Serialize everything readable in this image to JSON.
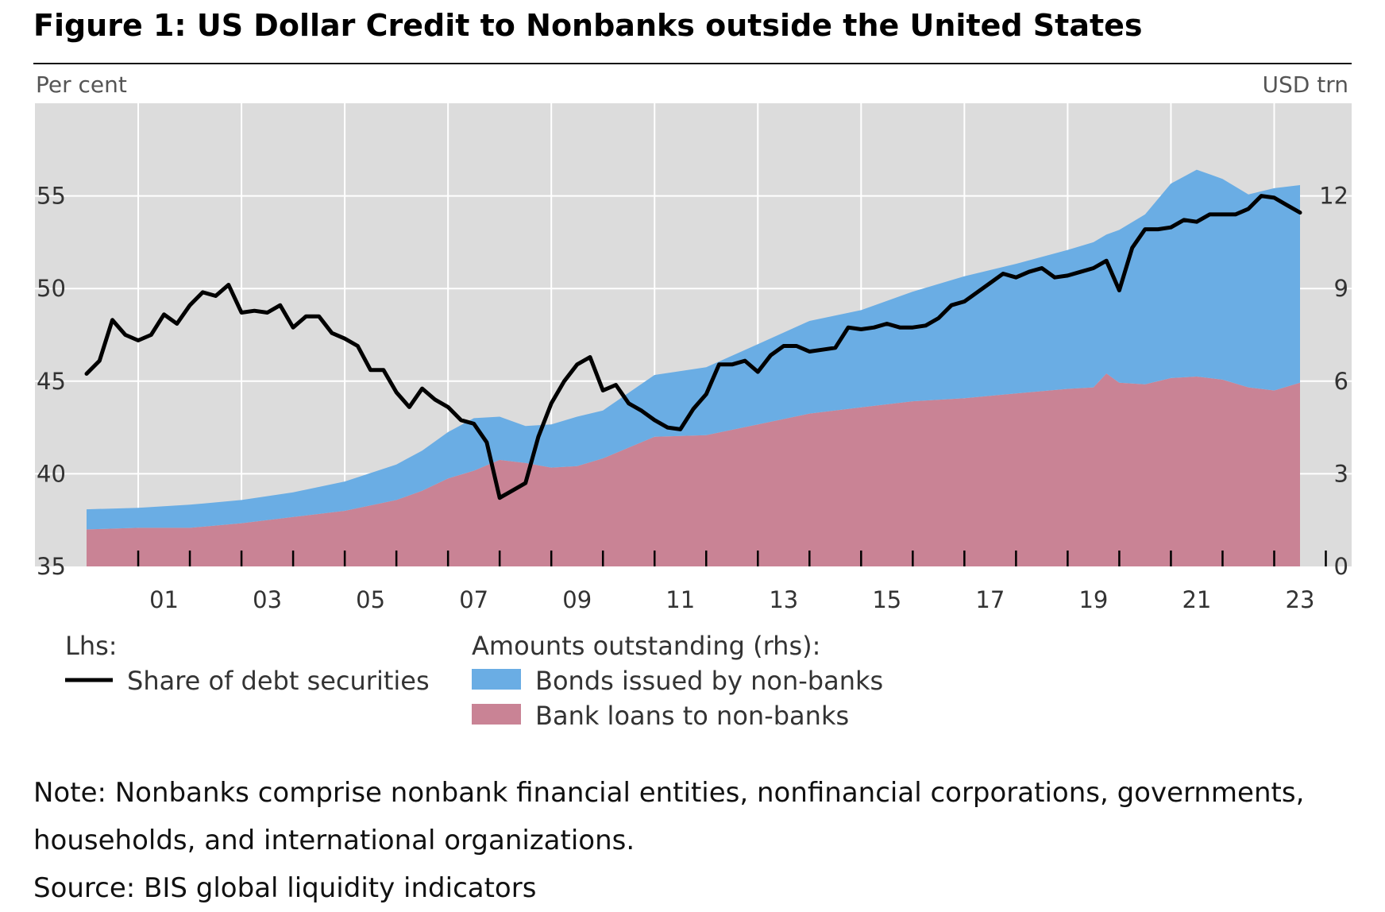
{
  "title": "Figure 1: US Dollar Credit to Nonbanks outside the United States",
  "note_lines": [
    "Note: Nonbanks comprise nonbank financial entities, nonfinancial corporations, governments,",
    "households, and international organizations."
  ],
  "source": "Source: BIS global liquidity indicators",
  "colors": {
    "plot_bg": "#dcdcdc",
    "grid": "#ffffff",
    "bonds": "#6aade4",
    "loans": "#c98395",
    "line": "#000000"
  },
  "chart_data": {
    "type": "area",
    "y_left_unit": "Per cent",
    "y_right_unit": "USD trn",
    "x_ticks": [
      "01",
      "03",
      "05",
      "07",
      "09",
      "11",
      "13",
      "15",
      "17",
      "19",
      "21",
      "23"
    ],
    "x_tick_values": [
      2001,
      2003,
      2005,
      2007,
      2009,
      2011,
      2013,
      2015,
      2017,
      2019,
      2021,
      2023
    ],
    "xlim": [
      1999.0,
      2024.5
    ],
    "y_left_ticks": [
      35,
      40,
      45,
      50,
      55
    ],
    "ylim_left": [
      35,
      60
    ],
    "y_right_ticks": [
      0,
      3,
      6,
      9,
      12
    ],
    "ylim_right": [
      0,
      15
    ],
    "grid": true,
    "legend": {
      "lhs_header": "Lhs:",
      "rhs_header": "Amounts outstanding (rhs):"
    },
    "series": [
      {
        "name": "Share of debt securities",
        "axis": "left",
        "kind": "line",
        "x": [
          2000.0,
          2000.25,
          2000.5,
          2000.75,
          2001.0,
          2001.25,
          2001.5,
          2001.75,
          2002.0,
          2002.25,
          2002.5,
          2002.75,
          2003.0,
          2003.25,
          2003.5,
          2003.75,
          2004.0,
          2004.25,
          2004.5,
          2004.75,
          2005.0,
          2005.25,
          2005.5,
          2005.75,
          2006.0,
          2006.25,
          2006.5,
          2006.75,
          2007.0,
          2007.25,
          2007.5,
          2007.75,
          2008.0,
          2008.25,
          2008.5,
          2008.75,
          2009.0,
          2009.25,
          2009.5,
          2009.75,
          2010.0,
          2010.25,
          2010.5,
          2010.75,
          2011.0,
          2011.25,
          2011.5,
          2011.75,
          2012.0,
          2012.25,
          2012.5,
          2012.75,
          2013.0,
          2013.25,
          2013.5,
          2013.75,
          2014.0,
          2014.25,
          2014.5,
          2014.75,
          2015.0,
          2015.25,
          2015.5,
          2015.75,
          2016.0,
          2016.25,
          2016.5,
          2016.75,
          2017.0,
          2017.25,
          2017.5,
          2017.75,
          2018.0,
          2018.25,
          2018.5,
          2018.75,
          2019.0,
          2019.25,
          2019.5,
          2019.75,
          2020.0,
          2020.25,
          2020.5,
          2020.75,
          2021.0,
          2021.25,
          2021.5,
          2021.75,
          2022.0,
          2022.25,
          2022.5,
          2022.75,
          2023.0,
          2023.25,
          2023.5
        ],
        "values": [
          45.4,
          46.1,
          48.3,
          47.5,
          47.2,
          47.5,
          48.6,
          48.1,
          49.1,
          49.8,
          49.6,
          50.2,
          48.7,
          48.8,
          48.7,
          49.1,
          47.9,
          48.5,
          48.5,
          47.6,
          47.3,
          46.9,
          45.6,
          45.6,
          44.4,
          43.6,
          44.6,
          44.0,
          43.6,
          42.9,
          42.7,
          41.7,
          38.7,
          39.1,
          39.5,
          42.0,
          43.8,
          45.0,
          45.9,
          46.3,
          44.5,
          44.8,
          43.8,
          43.4,
          42.9,
          42.5,
          42.4,
          43.5,
          44.3,
          45.9,
          45.9,
          46.1,
          45.5,
          46.4,
          46.9,
          46.9,
          46.6,
          46.7,
          46.8,
          47.9,
          47.8,
          47.9,
          48.1,
          47.9,
          47.9,
          48.0,
          48.4,
          49.1,
          49.3,
          49.8,
          50.3,
          50.8,
          50.6,
          50.9,
          51.1,
          50.6,
          50.7,
          50.9,
          51.1,
          51.5,
          49.9,
          52.2,
          53.2,
          53.2,
          53.3,
          53.7,
          53.6,
          54.0,
          54.0,
          54.0,
          54.3,
          55.0,
          54.9,
          54.5,
          54.1
        ]
      },
      {
        "name": "Bonds issued by non-banks",
        "axis": "right",
        "kind": "stacked-area",
        "stack_base": "Bank loans to non-banks",
        "x": [
          2000.0,
          2001.0,
          2002.0,
          2003.0,
          2004.0,
          2005.0,
          2006.0,
          2006.5,
          2007.0,
          2007.5,
          2008.0,
          2008.5,
          2009.0,
          2009.5,
          2010.0,
          2011.0,
          2012.0,
          2013.0,
          2014.0,
          2015.0,
          2016.0,
          2017.0,
          2018.0,
          2019.0,
          2019.5,
          2019.75,
          2020.0,
          2020.5,
          2021.0,
          2021.5,
          2022.0,
          2022.5,
          2023.0,
          2023.5
        ],
        "values": [
          0.65,
          0.65,
          0.75,
          0.75,
          0.8,
          0.95,
          1.15,
          1.3,
          1.5,
          1.7,
          1.4,
          1.2,
          1.4,
          1.6,
          1.55,
          2.0,
          2.2,
          2.6,
          3.0,
          3.15,
          3.55,
          3.95,
          4.2,
          4.5,
          4.7,
          4.5,
          4.95,
          5.5,
          6.3,
          6.7,
          6.5,
          6.25,
          6.55,
          6.4
        ]
      },
      {
        "name": "Bank loans to non-banks",
        "axis": "right",
        "kind": "stacked-area",
        "x": [
          2000.0,
          2001.0,
          2002.0,
          2003.0,
          2004.0,
          2005.0,
          2006.0,
          2006.5,
          2007.0,
          2007.5,
          2008.0,
          2008.5,
          2009.0,
          2009.5,
          2010.0,
          2011.0,
          2012.0,
          2013.0,
          2014.0,
          2015.0,
          2016.0,
          2017.0,
          2018.0,
          2019.0,
          2019.5,
          2019.75,
          2020.0,
          2020.5,
          2021.0,
          2021.5,
          2022.0,
          2022.5,
          2023.0,
          2023.5
        ],
        "values": [
          1.2,
          1.25,
          1.25,
          1.4,
          1.6,
          1.8,
          2.15,
          2.45,
          2.85,
          3.1,
          3.45,
          3.35,
          3.2,
          3.25,
          3.5,
          4.2,
          4.25,
          4.6,
          4.95,
          5.15,
          5.35,
          5.45,
          5.6,
          5.75,
          5.8,
          6.25,
          5.95,
          5.9,
          6.1,
          6.15,
          6.05,
          5.8,
          5.7,
          5.95
        ]
      }
    ]
  }
}
